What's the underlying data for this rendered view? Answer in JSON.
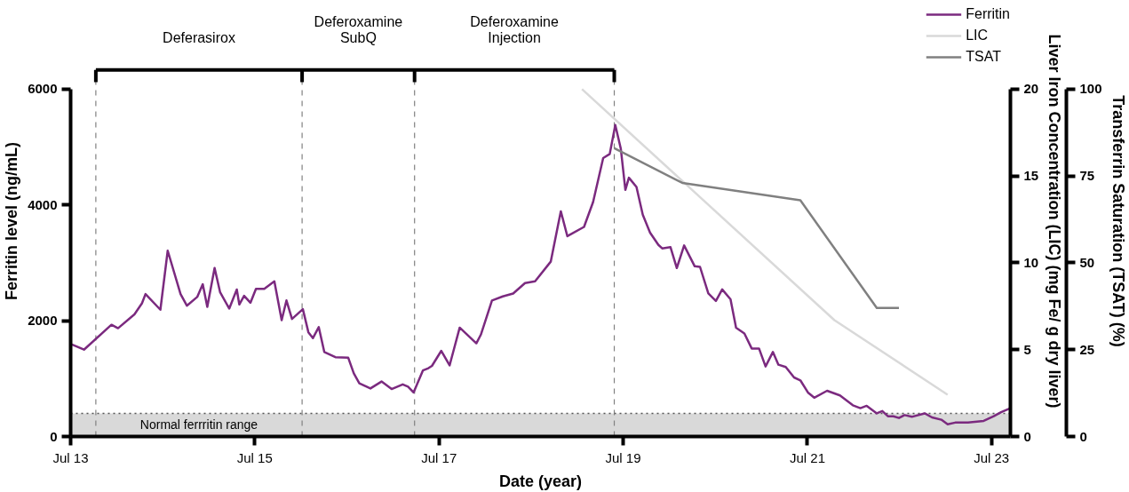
{
  "chart_data": {
    "type": "line",
    "xlabel": "Date (year)",
    "ylabel": "Ferritin level (ng/mL)",
    "y2label": "Liver Iron Concentration (LIC) (mg Fe/ g dry liver)",
    "y3label": "Transferrin Saturation (TSAT) (%)",
    "xlim": [
      "2013-07-01",
      "2023-09-14"
    ],
    "xticks": [
      {
        "value": "2013-07-01",
        "label": "Jul 13"
      },
      {
        "value": "2015-07-01",
        "label": "Jul 15"
      },
      {
        "value": "2017-07-01",
        "label": "Jul 17"
      },
      {
        "value": "2019-07-01",
        "label": "Jul 19"
      },
      {
        "value": "2021-07-01",
        "label": "Jul 21"
      },
      {
        "value": "2023-07-01",
        "label": "Jul 23"
      }
    ],
    "ylim": [
      0,
      6000
    ],
    "yticks": [
      0,
      2000,
      4000,
      6000
    ],
    "y2lim": [
      0,
      20
    ],
    "y2ticks": [
      0,
      5,
      10,
      15,
      20
    ],
    "y3lim": [
      0,
      100
    ],
    "y3ticks": [
      0,
      25,
      50,
      75,
      100
    ],
    "legend": "top right",
    "series": [
      {
        "name": "Ferritin",
        "color": "#7b2a7f",
        "x": [
          "2013-07-06",
          "2013-08-23",
          "2013-12-10",
          "2014-01-05",
          "2014-03-11",
          "2014-04-10",
          "2014-04-24",
          "2014-06-22",
          "2014-07-21",
          "2014-09-10",
          "2014-10-05",
          "2014-11-15",
          "2014-12-07",
          "2014-12-25",
          "2015-01-23",
          "2015-02-14",
          "2015-03-22",
          "2015-04-21",
          "2015-05-01",
          "2015-05-20",
          "2015-06-14",
          "2015-07-06",
          "2015-08-08",
          "2015-09-17",
          "2015-10-16",
          "2015-11-04",
          "2015-11-26",
          "2016-01-08",
          "2016-01-30",
          "2016-02-17",
          "2016-03-11",
          "2016-04-02",
          "2016-05-16",
          "2016-07-06",
          "2016-07-28",
          "2016-08-19",
          "2016-10-02",
          "2016-11-15",
          "2016-12-25",
          "2017-02-07",
          "2017-02-28",
          "2017-03-22",
          "2017-04-28",
          "2017-05-20",
          "2017-06-03",
          "2017-07-10",
          "2017-08-12",
          "2017-09-21",
          "2017-11-26",
          "2017-12-14",
          "2018-01-27",
          "2018-03-11",
          "2018-04-21",
          "2018-06-07",
          "2018-07-17",
          "2018-09-17",
          "2018-10-27",
          "2018-11-22",
          "2019-01-27",
          "2019-03-04",
          "2019-04-13",
          "2019-05-09",
          "2019-05-31",
          "2019-06-22",
          "2019-07-10",
          "2019-07-24",
          "2019-08-23",
          "2019-09-17",
          "2019-10-16",
          "2019-11-18",
          "2019-12-03",
          "2020-01-05",
          "2020-01-30",
          "2020-02-28",
          "2020-04-10",
          "2020-05-01",
          "2020-06-03",
          "2020-07-03",
          "2020-07-28",
          "2020-08-30",
          "2020-09-21",
          "2020-10-24",
          "2020-11-22",
          "2020-12-21",
          "2021-01-16",
          "2021-02-14",
          "2021-03-08",
          "2021-04-06",
          "2021-05-09",
          "2021-06-03",
          "2021-07-03",
          "2021-07-28",
          "2021-09-17",
          "2021-11-07",
          "2021-12-28",
          "2022-01-27",
          "2022-02-21",
          "2022-04-02",
          "2022-04-24",
          "2022-05-16",
          "2022-06-07",
          "2022-06-29",
          "2022-07-21",
          "2022-08-19",
          "2022-10-09",
          "2022-11-07",
          "2022-12-14",
          "2023-01-08",
          "2023-02-07",
          "2023-03-30",
          "2023-05-31",
          "2023-07-10",
          "2023-08-08",
          "2023-09-14"
        ],
        "values": [
          1590,
          1500,
          1930,
          1870,
          2110,
          2300,
          2460,
          2190,
          3210,
          2460,
          2260,
          2410,
          2630,
          2240,
          2910,
          2490,
          2210,
          2540,
          2280,
          2430,
          2310,
          2550,
          2550,
          2680,
          2010,
          2350,
          2030,
          2200,
          1800,
          1700,
          1890,
          1460,
          1370,
          1360,
          1090,
          920,
          830,
          950,
          820,
          900,
          860,
          760,
          1140,
          1180,
          1220,
          1480,
          1230,
          1880,
          1610,
          1760,
          2350,
          2420,
          2470,
          2650,
          2680,
          3020,
          3890,
          3460,
          3620,
          4050,
          4810,
          4880,
          5380,
          4970,
          4260,
          4470,
          4310,
          3830,
          3520,
          3310,
          3250,
          3270,
          2910,
          3300,
          2940,
          2930,
          2470,
          2340,
          2540,
          2370,
          1880,
          1780,
          1520,
          1520,
          1210,
          1460,
          1240,
          1200,
          1020,
          970,
          760,
          670,
          790,
          710,
          540,
          490,
          530,
          400,
          440,
          350,
          350,
          320,
          370,
          340,
          400,
          330,
          290,
          210,
          240,
          240,
          270,
          350,
          420,
          490
        ]
      },
      {
        "name": "LIC",
        "color": "#d9d9d9",
        "axis": "y2",
        "x": [
          "2019-01-19",
          "2021-10-16",
          "2023-01-08"
        ],
        "values": [
          20,
          6.7,
          2.4
        ]
      },
      {
        "name": "TSAT",
        "color": "#808080",
        "axis": "y3",
        "x": [
          "2019-05-27",
          "2020-02-21",
          "2021-06-03",
          "2022-04-02",
          "2022-06-29"
        ],
        "values": [
          83,
          73,
          68,
          37,
          37
        ]
      }
    ],
    "ref_lines": [
      {
        "axis": "x",
        "value": "2013-10-09",
        "color": "#808080",
        "line_style": "dashed"
      },
      {
        "axis": "x",
        "value": "2016-01-05",
        "color": "#808080",
        "line_style": "dashed"
      },
      {
        "axis": "x",
        "value": "2017-03-26",
        "color": "#808080",
        "line_style": "dashed"
      },
      {
        "axis": "x",
        "value": "2019-05-27",
        "color": "#808080",
        "line_style": "dashed"
      }
    ],
    "annotations": [
      "Deferasirox",
      "Deferoxamine SubQ",
      "Deferoxamine Injection"
    ],
    "bands": [
      {
        "axis": "y",
        "from": 0,
        "to": 400,
        "label": "Normal ferrritin range",
        "color": "#d9d9d9"
      }
    ]
  }
}
